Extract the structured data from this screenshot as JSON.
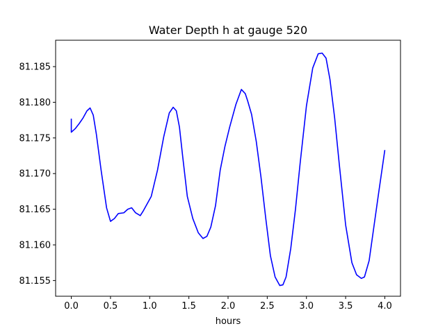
{
  "chart_data": {
    "type": "line",
    "title": "Water Depth h at gauge 520",
    "xlabel": "hours",
    "ylabel": "",
    "xlim": [
      -0.2,
      4.2
    ],
    "ylim": [
      81.1528,
      81.1887
    ],
    "xticks": [
      0.0,
      0.5,
      1.0,
      1.5,
      2.0,
      2.5,
      3.0,
      3.5,
      4.0
    ],
    "xtick_labels": [
      "0.0",
      "0.5",
      "1.0",
      "1.5",
      "2.0",
      "2.5",
      "3.0",
      "3.5",
      "4.0"
    ],
    "yticks": [
      81.155,
      81.16,
      81.165,
      81.17,
      81.175,
      81.18,
      81.185
    ],
    "ytick_labels": [
      "81.155",
      "81.160",
      "81.165",
      "81.170",
      "81.175",
      "81.180",
      "81.185"
    ],
    "grid": false,
    "series": [
      {
        "color": "#0000ff",
        "x": [
          0.0,
          0.0,
          0.05,
          0.1,
          0.15,
          0.2,
          0.24,
          0.28,
          0.32,
          0.38,
          0.45,
          0.5,
          0.55,
          0.6,
          0.67,
          0.72,
          0.77,
          0.82,
          0.88,
          0.92,
          0.97,
          1.02,
          1.1,
          1.18,
          1.25,
          1.3,
          1.34,
          1.38,
          1.42,
          1.48,
          1.55,
          1.62,
          1.68,
          1.73,
          1.78,
          1.84,
          1.9,
          1.96,
          2.02,
          2.1,
          2.17,
          2.22,
          2.25,
          2.3,
          2.36,
          2.42,
          2.48,
          2.54,
          2.6,
          2.66,
          2.7,
          2.74,
          2.8,
          2.86,
          2.92,
          3.0,
          3.08,
          3.15,
          3.2,
          3.25,
          3.3,
          3.36,
          3.42,
          3.5,
          3.58,
          3.64,
          3.7,
          3.74,
          3.8,
          3.86,
          3.92,
          4.0
        ],
        "y": [
          81.1777,
          81.1758,
          81.1763,
          81.177,
          81.1778,
          81.1788,
          81.1792,
          81.1782,
          81.1755,
          81.1705,
          81.1652,
          81.1633,
          81.1637,
          81.1644,
          81.1645,
          81.165,
          81.1652,
          81.1645,
          81.1641,
          81.1648,
          81.1658,
          81.1668,
          81.1705,
          81.1752,
          81.1785,
          81.1793,
          81.1788,
          81.1765,
          81.1725,
          81.1668,
          81.1637,
          81.1617,
          81.1609,
          81.1612,
          81.1625,
          81.1655,
          81.1705,
          81.1738,
          81.1765,
          81.1797,
          81.1818,
          81.1812,
          81.1802,
          81.1783,
          81.1745,
          81.1695,
          81.1638,
          81.1585,
          81.1555,
          81.1543,
          81.1544,
          81.1555,
          81.1595,
          81.165,
          81.1715,
          81.1795,
          81.1848,
          81.1868,
          81.1869,
          81.1862,
          81.1832,
          81.1778,
          81.1712,
          81.1628,
          81.1575,
          81.1558,
          81.1553,
          81.1555,
          81.1578,
          81.1625,
          81.1672,
          81.1733
        ]
      }
    ]
  }
}
